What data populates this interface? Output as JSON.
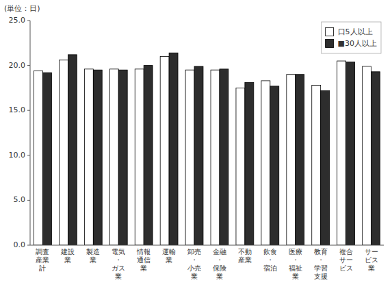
{
  "chart_data": {
    "type": "bar",
    "ylabel": "(単位：日)",
    "categories": [
      "調査\n産業\n計",
      "建設\n業",
      "製造\n業",
      "電気\n・\nガス\n業",
      "情報\n通信\n業",
      "運輸\n業",
      "卸売\n・\n小売\n業",
      "金融\n・\n保険\n業",
      "不動\n産業",
      "飲食\n・\n宿泊",
      "医療\n・\n福祉\n業",
      "教育\n・\n学習\n支援",
      "複合\nサー\nビス",
      "サー\nビス\n業"
    ],
    "series": [
      {
        "name": "口5人以上",
        "color": "#ffffff",
        "values": [
          19.4,
          20.6,
          19.6,
          19.6,
          19.6,
          21.0,
          19.5,
          19.5,
          17.5,
          18.3,
          19.0,
          17.8,
          20.5,
          19.9
        ]
      },
      {
        "name": "■30人以上",
        "color": "#2d2d2d",
        "values": [
          19.2,
          21.2,
          19.5,
          19.5,
          20.0,
          21.4,
          19.9,
          19.6,
          18.1,
          17.7,
          19.0,
          17.2,
          20.4,
          19.3
        ]
      }
    ],
    "ylim": [
      0.0,
      25.0
    ],
    "yticks": [
      {
        "value": 0.0,
        "label": "0.0"
      },
      {
        "value": 5.0,
        "label": "5.0"
      },
      {
        "value": 10.0,
        "label": "10.0"
      },
      {
        "value": 15.0,
        "label": "15.0"
      },
      {
        "value": 20.0,
        "label": "20.0"
      },
      {
        "value": 25.0,
        "label": "25.0"
      }
    ],
    "grid": false,
    "legend": "upper right"
  }
}
